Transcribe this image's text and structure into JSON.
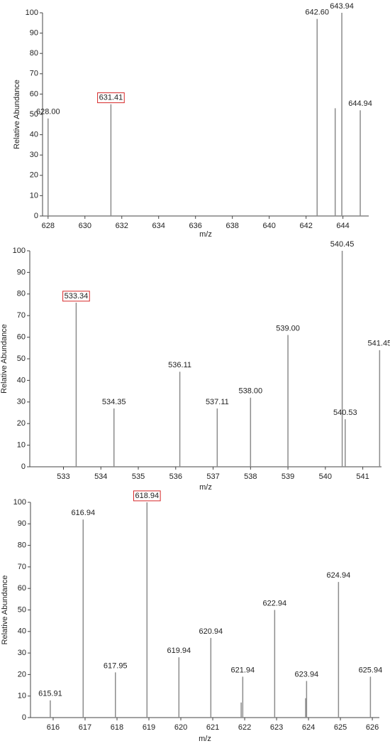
{
  "chart_data": [
    {
      "type": "stem",
      "x_label": "m/z",
      "y_label": "Relative Abundance",
      "color": "#8c8c8c",
      "highlight_color": "#d62728",
      "x": [
        628.0,
        631.41,
        642.6,
        643.58,
        643.94,
        644.94
      ],
      "values": [
        48,
        55,
        97,
        53,
        100,
        52
      ],
      "labels": [
        "628.00",
        "631.41",
        "642.60",
        null,
        "643.94",
        "644.94"
      ],
      "highlight": 1,
      "xlim": [
        627.7,
        645.4
      ],
      "xticks": [
        628,
        630,
        632,
        634,
        636,
        638,
        640,
        642,
        644
      ],
      "ylim": [
        0,
        100
      ],
      "yticks": [
        0,
        10,
        20,
        30,
        40,
        50,
        60,
        70,
        80,
        90,
        100
      ]
    },
    {
      "type": "stem",
      "x_label": "m/z",
      "y_label": "Relative Abundance",
      "color": "#8c8c8c",
      "highlight_color": "#d62728",
      "x": [
        533.34,
        534.35,
        536.11,
        537.11,
        538.0,
        539.0,
        540.45,
        540.53,
        541.45
      ],
      "values": [
        76,
        27,
        44,
        27,
        32,
        61,
        100,
        22,
        54
      ],
      "labels": [
        "533.34",
        "534.35",
        "536.11",
        "537.11",
        "538.00",
        "539.00",
        "540.45",
        "540.53",
        "541.45"
      ],
      "highlight": 0,
      "xlim": [
        532.1,
        541.5
      ],
      "xticks": [
        533,
        534,
        535,
        536,
        537,
        538,
        539,
        540,
        541
      ],
      "ylim": [
        0,
        100
      ],
      "yticks": [
        0,
        10,
        20,
        30,
        40,
        50,
        60,
        70,
        80,
        90,
        100
      ]
    },
    {
      "type": "stem",
      "x_label": "m/z",
      "y_label": "Relative Abundance",
      "color": "#8c8c8c",
      "highlight_color": "#d62728",
      "x": [
        615.91,
        616.94,
        617.95,
        618.94,
        619.94,
        620.94,
        621.89,
        621.94,
        622.94,
        623.91,
        623.94,
        624.94,
        625.94
      ],
      "values": [
        8,
        92,
        21,
        100,
        28,
        37,
        7,
        19,
        50,
        9,
        17,
        63,
        19
      ],
      "labels": [
        "615.91",
        "616.94",
        "617.95",
        "618.94",
        "619.94",
        "620.94",
        null,
        "621.94",
        "622.94",
        null,
        "623.94",
        "624.94",
        "625.94"
      ],
      "highlight": 3,
      "xlim": [
        615.29,
        626.22
      ],
      "xticks": [
        616,
        617,
        618,
        619,
        620,
        621,
        622,
        623,
        624,
        625,
        626
      ],
      "ylim": [
        0,
        100
      ],
      "yticks": [
        0,
        10,
        20,
        30,
        40,
        50,
        60,
        70,
        80,
        90,
        100
      ]
    }
  ]
}
